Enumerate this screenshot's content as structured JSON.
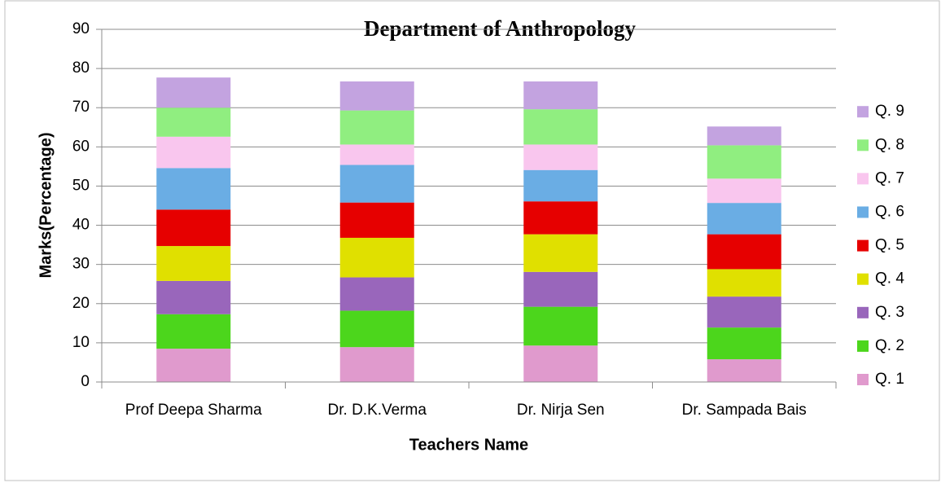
{
  "chart_data": {
    "type": "stacked_bar",
    "title": "Department of Anthropology",
    "x_label": "Teachers Name",
    "y_label": "Marks(Percentage)",
    "categories": [
      "Prof Deepa Sharma",
      "Dr. D.K.Verma",
      "Dr. Nirja Sen",
      "Dr. Sampada Bais"
    ],
    "series": [
      {
        "name": "Q. 1",
        "color": "#e09acd",
        "values": [
          8.5,
          8.9,
          9.3,
          5.8
        ]
      },
      {
        "name": "Q. 2",
        "color": "#4cd61c",
        "values": [
          8.8,
          9.3,
          9.9,
          8.1
        ]
      },
      {
        "name": "Q. 3",
        "color": "#9966bb",
        "values": [
          8.5,
          8.5,
          8.9,
          7.9
        ]
      },
      {
        "name": "Q. 4",
        "color": "#e0e000",
        "values": [
          8.9,
          10.1,
          9.6,
          7.0
        ]
      },
      {
        "name": "Q. 5",
        "color": "#e60000",
        "values": [
          9.3,
          9.0,
          8.4,
          8.9
        ]
      },
      {
        "name": "Q. 6",
        "color": "#6aade4",
        "values": [
          10.6,
          9.6,
          8.0,
          8.0
        ]
      },
      {
        "name": "Q. 7",
        "color": "#f9c6ee",
        "values": [
          8.0,
          5.2,
          6.5,
          6.2
        ]
      },
      {
        "name": "Q. 8",
        "color": "#90ee80",
        "values": [
          7.4,
          8.7,
          9.0,
          8.5
        ]
      },
      {
        "name": "Q. 9",
        "color": "#c3a3e0",
        "values": [
          7.7,
          7.4,
          7.1,
          4.8
        ]
      }
    ],
    "ylim": [
      0,
      90
    ],
    "yticks": [
      0,
      10,
      20,
      30,
      40,
      50,
      60,
      70,
      80,
      90
    ],
    "grid": true,
    "legend": "right"
  }
}
